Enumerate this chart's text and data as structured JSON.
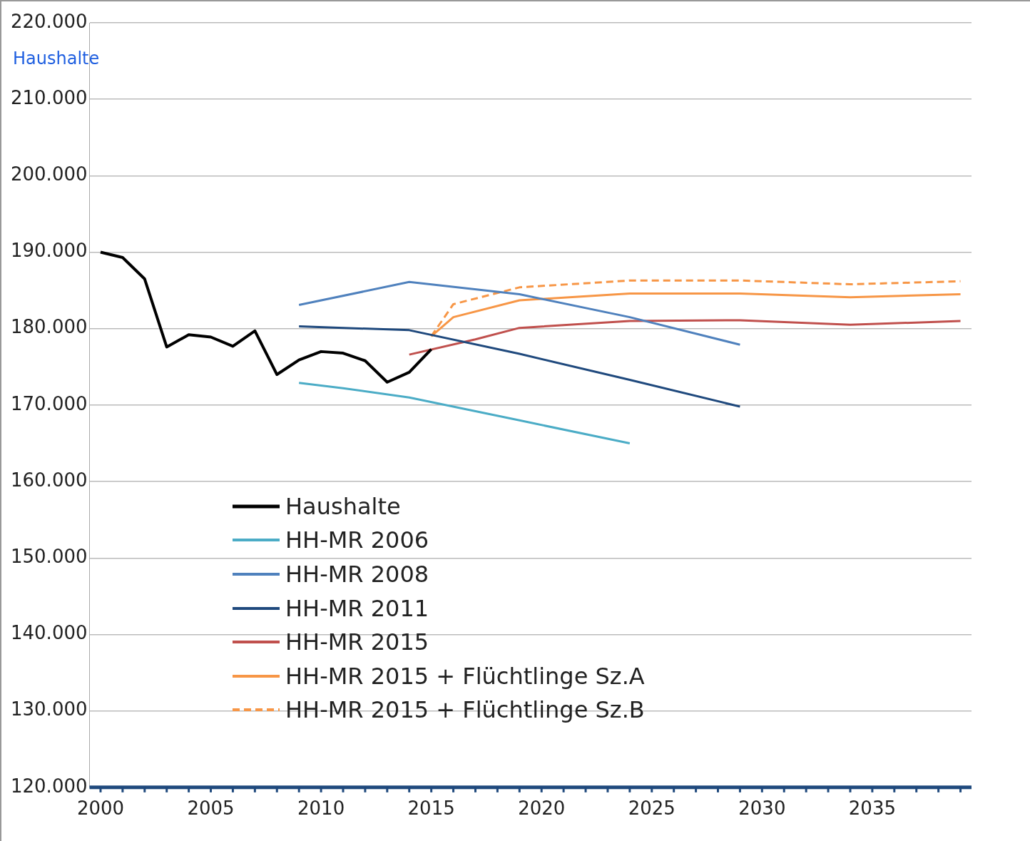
{
  "chart_data": {
    "type": "line",
    "ylabel": "Haushalte",
    "xlim": [
      1999.5,
      2039.5
    ],
    "xticks": [
      2000,
      2005,
      2010,
      2015,
      2020,
      2025,
      2030,
      2035
    ],
    "ylim": [
      120000,
      220000
    ],
    "yticks": [
      {
        "value": 120000,
        "label": "120.000"
      },
      {
        "value": 130000,
        "label": "130.000"
      },
      {
        "value": 140000,
        "label": "140.000"
      },
      {
        "value": 150000,
        "label": "150.000"
      },
      {
        "value": 160000,
        "label": "160.000"
      },
      {
        "value": 170000,
        "label": "170.000"
      },
      {
        "value": 180000,
        "label": "180.000"
      },
      {
        "value": 190000,
        "label": "190.000"
      },
      {
        "value": 200000,
        "label": "200.000"
      },
      {
        "value": 210000,
        "label": "210.000"
      },
      {
        "value": 220000,
        "label": "220.000"
      }
    ],
    "grid": "y",
    "legend": "bottom left",
    "marker": "none",
    "line_style": "solid",
    "series": [
      {
        "name": "Haushalte",
        "color": "#000000",
        "x": [
          2000,
          2001,
          2002,
          2003,
          2004,
          2005,
          2006,
          2007,
          2008,
          2009,
          2010,
          2011,
          2012,
          2013,
          2014,
          2015
        ],
        "values": [
          190000,
          189300,
          186500,
          177600,
          179200,
          178900,
          177700,
          179700,
          174000,
          175900,
          177000,
          176800,
          175800,
          173000,
          174300,
          177300
        ]
      },
      {
        "name": "HH-MR 2006",
        "color": "#4bacc6",
        "x": [
          2009,
          2011,
          2014,
          2019,
          2024
        ],
        "values": [
          172900,
          172200,
          171000,
          168000,
          165000
        ]
      },
      {
        "name": "HH-MR 2008",
        "color": "#4f81bd",
        "x": [
          2009,
          2014,
          2019,
          2024,
          2029
        ],
        "values": [
          183100,
          186100,
          184500,
          181500,
          177900
        ]
      },
      {
        "name": "HH-MR 2011",
        "color": "#1f497d",
        "x": [
          2009,
          2014,
          2019,
          2024,
          2029
        ],
        "values": [
          180300,
          179800,
          176700,
          173300,
          169800
        ]
      },
      {
        "name": "HH-MR 2015",
        "color": "#c0504d",
        "x": [
          2014,
          2017,
          2019,
          2024,
          2029,
          2034,
          2039
        ],
        "values": [
          176600,
          178600,
          180100,
          181000,
          181100,
          180500,
          181000
        ]
      },
      {
        "name": "HH-MR 2015 + Flüchtlinge Sz.A",
        "color": "#f79646",
        "x": [
          2015,
          2016,
          2019,
          2024,
          2029,
          2034,
          2039
        ],
        "values": [
          179000,
          181500,
          183700,
          184600,
          184600,
          184100,
          184500
        ]
      },
      {
        "name": "HH-MR 2015 + Flüchtlinge Sz.B",
        "color": "#f79646",
        "line_style": "dashed",
        "x": [
          2015,
          2016,
          2019,
          2024,
          2029,
          2034,
          2039
        ],
        "values": [
          179000,
          183200,
          185400,
          186300,
          186300,
          185800,
          186200
        ]
      }
    ]
  }
}
